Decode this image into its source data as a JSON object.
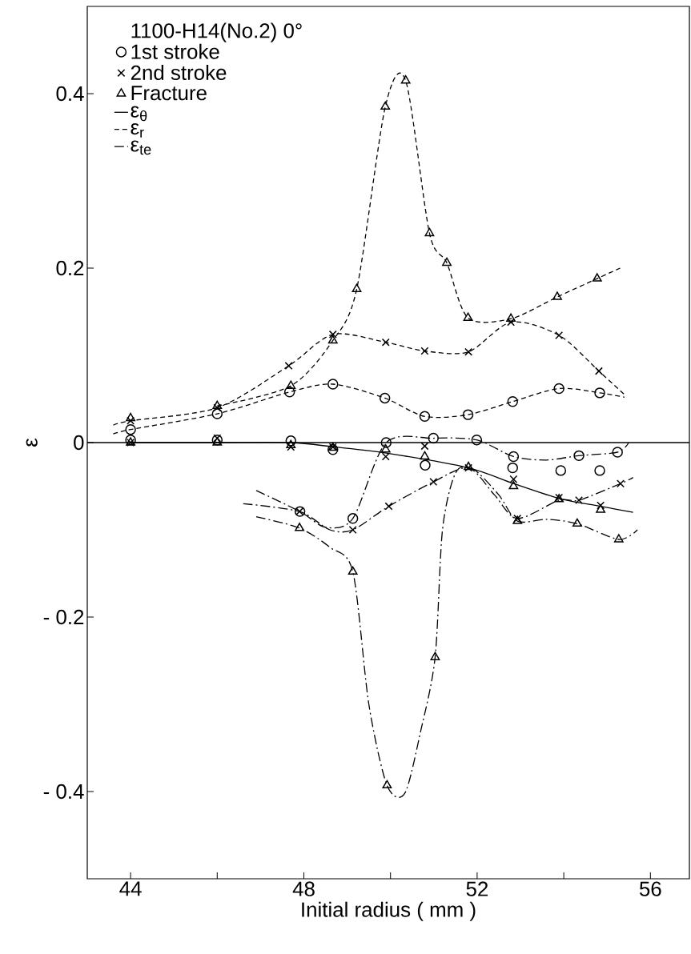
{
  "chart_data": {
    "type": "scatter",
    "xlabel": "Initial radius ( mm )",
    "ylabel": "ε",
    "legend_title": "1100-H14(No.2)  0°",
    "legend": "top left",
    "xlim": [
      43,
      56.9
    ],
    "ylim": [
      -0.5,
      0.5
    ],
    "xticks": [
      44,
      {
        "value": 46,
        "label": null
      },
      48,
      {
        "value": 50,
        "label": null
      },
      52,
      {
        "value": 54,
        "label": null
      },
      56
    ],
    "yticks": [
      {
        "value": -0.4,
        "label": "- 0.4"
      },
      {
        "value": -0.2,
        "label": "- 0.2"
      },
      0,
      0.2,
      0.4
    ],
    "ref_lines": [
      {
        "axis": "y",
        "value": 0,
        "color": "#000000"
      }
    ],
    "series": [
      {
        "name": "1st stroke",
        "marker": "circle",
        "color": "#000000",
        "x": [
          44,
          46,
          47.67,
          48.67,
          49.87,
          50.79,
          51.79,
          52.82,
          53.89,
          54.83,
          44,
          46,
          47.7,
          48.67,
          49.9,
          50.8,
          52.82,
          53.93,
          54.83,
          47.91,
          49.13,
          50.99,
          51.99,
          52.84,
          54.35,
          55.24
        ],
        "values": [
          0.015,
          0.033,
          0.058,
          0.067,
          0.051,
          0.03,
          0.032,
          0.047,
          0.062,
          0.057,
          0.003,
          0.003,
          0.002,
          -0.008,
          0,
          -0.026,
          -0.029,
          -0.032,
          -0.032,
          -0.079,
          -0.087,
          0.005,
          0.003,
          -0.016,
          -0.015,
          -0.011
        ]
      },
      {
        "name": "2nd stroke",
        "marker": "cross",
        "color": "#000000",
        "x": [
          44,
          46,
          47.65,
          48.67,
          49.89,
          50.79,
          51.8,
          52.78,
          53.89,
          54.81,
          44,
          46,
          47.7,
          48.67,
          49.89,
          50.79,
          51.8,
          52.84,
          53.89,
          54.35,
          54.85,
          47.9,
          49.13,
          49.96,
          50.99,
          52.93,
          55.31
        ],
        "values": [
          0.025,
          0.04,
          0.088,
          0.124,
          0.115,
          0.105,
          0.104,
          0.138,
          0.123,
          0.082,
          0,
          0.005,
          -0.005,
          -0.005,
          -0.016,
          -0.004,
          -0.029,
          -0.042,
          -0.063,
          -0.066,
          -0.072,
          -0.079,
          -0.1,
          -0.073,
          -0.045,
          -0.087,
          -0.047
        ]
      },
      {
        "name": "Fracture",
        "marker": "triangle",
        "color": "#000000",
        "x": [
          44,
          46,
          47.7,
          48.67,
          49.22,
          49.88,
          50.35,
          50.9,
          51.3,
          51.79,
          52.78,
          53.85,
          54.77,
          44,
          46,
          47.7,
          48.67,
          49.89,
          50.79,
          51.8,
          52.84,
          53.89,
          54.85,
          47.9,
          49.13,
          49.92,
          51.03,
          52.93,
          54.31,
          55.27
        ],
        "values": [
          0.028,
          0.042,
          0.065,
          0.117,
          0.176,
          0.385,
          0.415,
          0.24,
          0.206,
          0.143,
          0.142,
          0.167,
          0.188,
          0,
          0,
          -0.003,
          -0.006,
          -0.008,
          -0.016,
          -0.028,
          -0.05,
          -0.065,
          -0.077,
          -0.098,
          -0.148,
          -0.393,
          -0.246,
          -0.09,
          -0.093,
          -0.111
        ]
      },
      {
        "name": "ε$_{θ}$",
        "type": "line",
        "line_style": "solid",
        "marker": "none",
        "color": "#000000",
        "x": [
          44,
          46,
          47.7,
          48.7,
          49.9,
          51.8,
          52.84,
          53.89,
          54.85,
          55.6
        ],
        "values": [
          0,
          0,
          0,
          -0.005,
          -0.012,
          -0.029,
          -0.047,
          -0.064,
          -0.073,
          -0.08
        ]
      },
      {
        "name": "ε$_{r}$",
        "type": "line",
        "line_style": "dashed",
        "marker": "none",
        "color": "#000000",
        "x": [
          43.6,
          44,
          46,
          47.67,
          48.67,
          49.87,
          50.79,
          51.79,
          52.82,
          53.89,
          54.83,
          55.4,
          null,
          43.6,
          44,
          46,
          47.65,
          48.67,
          49.89,
          50.79,
          51.8,
          52.78,
          53.89,
          54.81,
          55.4,
          null,
          46,
          47.7,
          48.67,
          49.22,
          49.88,
          50.35,
          50.9,
          51.3,
          51.79,
          52.78,
          53.85,
          54.77,
          55.3
        ],
        "values": [
          0.01,
          0.015,
          0.033,
          0.058,
          0.067,
          0.051,
          0.03,
          0.032,
          0.047,
          0.062,
          0.057,
          0.052,
          null,
          0.02,
          0.025,
          0.04,
          0.088,
          0.124,
          0.115,
          0.105,
          0.104,
          0.138,
          0.123,
          0.082,
          0.055,
          null,
          0.042,
          0.065,
          0.117,
          0.176,
          0.385,
          0.415,
          0.24,
          0.206,
          0.143,
          0.142,
          0.167,
          0.188,
          0.2
        ]
      },
      {
        "name": "ε$_{te}$",
        "type": "line",
        "line_style": "dashdot",
        "marker": "none",
        "color": "#000000",
        "x": [
          46.9,
          47.91,
          48.5,
          49.13,
          49.9,
          50.99,
          51.99,
          52.84,
          53.6,
          54.35,
          55.24,
          55.5,
          null,
          46.6,
          47.9,
          48.6,
          49.13,
          49.96,
          50.99,
          51.8,
          52.4,
          52.93,
          53.89,
          54.35,
          55.31,
          55.6,
          null,
          46.9,
          47.9,
          48.6,
          49.13,
          49.5,
          49.92,
          50.33,
          50.7,
          51.03,
          51.2,
          51.5,
          51.9,
          52.5,
          52.93,
          53.6,
          54.31,
          55.27,
          55.7
        ],
        "values": [
          -0.055,
          -0.079,
          -0.097,
          -0.087,
          0,
          0.005,
          0.003,
          -0.016,
          -0.02,
          -0.015,
          -0.011,
          0,
          null,
          -0.07,
          -0.079,
          -0.1,
          -0.1,
          -0.073,
          -0.045,
          -0.029,
          -0.06,
          -0.087,
          -0.066,
          -0.066,
          -0.047,
          -0.04,
          null,
          -0.085,
          -0.098,
          -0.12,
          -0.148,
          -0.3,
          -0.393,
          -0.402,
          -0.33,
          -0.246,
          -0.1,
          -0.035,
          -0.03,
          -0.06,
          -0.09,
          -0.088,
          -0.093,
          -0.111,
          -0.1
        ]
      }
    ]
  }
}
